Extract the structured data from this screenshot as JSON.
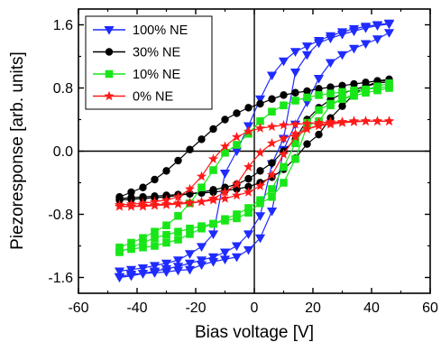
{
  "chart_data": {
    "type": "line",
    "xlabel": "Bias voltage [V]",
    "ylabel": "Piezoresponse [arb. units]",
    "xlim": [
      -60,
      60
    ],
    "ylim": [
      -1.8,
      1.8
    ],
    "x_ticks": [
      -60,
      -40,
      -20,
      0,
      20,
      40,
      60
    ],
    "x_tick_labels": [
      "-60",
      "-40",
      "-20",
      "0",
      "20",
      "40",
      "60"
    ],
    "y_ticks": [
      -1.6,
      -0.8,
      0.0,
      0.8,
      1.6
    ],
    "y_tick_labels": [
      "-1.6",
      "-0.8",
      "0.0",
      "0.8",
      "1.6"
    ],
    "reference_lines": {
      "x": 0,
      "y": 0
    },
    "legend_placement": "top-left",
    "series": [
      {
        "name": "100% NE",
        "legend_label": "100% NE",
        "color": "#1f2bff",
        "marker": "triangle-down",
        "branches": [
          {
            "x": [
              -46,
              -42,
              -38,
              -34,
              -30,
              -26,
              -22,
              -18,
              -14,
              -10,
              -6,
              -2,
              2,
              6,
              10,
              14,
              18,
              22,
              26,
              30,
              34,
              38,
              42,
              46
            ],
            "y": [
              -1.52,
              -1.5,
              -1.48,
              -1.45,
              -1.42,
              -1.38,
              -1.3,
              -1.21,
              -1.05,
              -0.28,
              0.0,
              0.32,
              0.66,
              0.96,
              1.14,
              1.26,
              1.33,
              1.4,
              1.46,
              1.51,
              1.55,
              1.58,
              1.6,
              1.62
            ]
          },
          {
            "x": [
              46,
              42,
              38,
              34,
              30,
              26,
              22,
              18,
              14,
              10,
              6,
              2,
              -2,
              -6,
              -10,
              -14,
              -18,
              -22,
              -26,
              -30,
              -34,
              -38,
              -42,
              -46
            ],
            "y": [
              1.61,
              1.59,
              1.56,
              1.52,
              1.48,
              1.43,
              1.37,
              1.22,
              1.0,
              0.16,
              -0.16,
              -0.82,
              -1.05,
              -1.2,
              -1.28,
              -1.34,
              -1.38,
              -1.42,
              -1.46,
              -1.49,
              -1.52,
              -1.55,
              -1.58,
              -1.6
            ]
          },
          {
            "x": [
              -46,
              -42,
              -38,
              -34,
              -30,
              -26,
              -22,
              -18,
              -14,
              -10,
              -6,
              -2,
              2,
              6,
              10,
              14,
              18,
              22,
              26,
              30,
              34,
              38,
              42,
              46
            ],
            "y": [
              -1.59,
              -1.56,
              -1.55,
              -1.54,
              -1.53,
              -1.51,
              -1.5,
              -1.44,
              -1.4,
              -1.37,
              -1.34,
              -1.25,
              -1.1,
              -0.76,
              0.02,
              0.34,
              0.62,
              0.92,
              1.12,
              1.22,
              1.3,
              1.36,
              1.42,
              1.5
            ]
          }
        ]
      },
      {
        "name": "30% NE",
        "legend_label": "30% NE",
        "color": "#000000",
        "marker": "circle",
        "branches": [
          {
            "x": [
              -46,
              -42,
              -38,
              -34,
              -30,
              -26,
              -22,
              -18,
              -14,
              -10,
              -6,
              -2,
              2,
              6,
              10,
              14,
              18,
              22,
              26,
              30,
              34,
              38,
              42,
              46
            ],
            "y": [
              -0.58,
              -0.52,
              -0.46,
              -0.36,
              -0.25,
              -0.12,
              0.02,
              0.15,
              0.28,
              0.4,
              0.48,
              0.55,
              0.6,
              0.66,
              0.71,
              0.74,
              0.76,
              0.79,
              0.81,
              0.83,
              0.85,
              0.87,
              0.89,
              0.91
            ]
          },
          {
            "x": [
              46,
              42,
              38,
              34,
              30,
              26,
              22,
              18,
              14,
              10,
              6,
              2,
              -2,
              -6,
              -10,
              -14,
              -18,
              -22,
              -26,
              -30,
              -34,
              -38,
              -42,
              -46
            ],
            "y": [
              0.9,
              0.88,
              0.82,
              0.72,
              0.57,
              0.42,
              0.21,
              0.09,
              -0.09,
              -0.23,
              -0.33,
              -0.4,
              -0.45,
              -0.48,
              -0.5,
              -0.52,
              -0.53,
              -0.54,
              -0.55,
              -0.56,
              -0.57,
              -0.58,
              -0.59,
              -0.6
            ]
          },
          {
            "x": [
              -46,
              -42,
              -38,
              -34,
              -30,
              -26,
              -22,
              -18,
              -14,
              -10,
              -6,
              -2,
              2,
              6,
              10,
              14,
              18,
              22,
              26,
              30,
              34,
              38,
              42,
              46
            ],
            "y": [
              -0.62,
              -0.61,
              -0.6,
              -0.59,
              -0.58,
              -0.56,
              -0.54,
              -0.52,
              -0.49,
              -0.46,
              -0.42,
              -0.35,
              -0.25,
              -0.15,
              0.0,
              0.15,
              0.4,
              0.55,
              0.65,
              0.73,
              0.78,
              0.82,
              0.86,
              0.88
            ]
          }
        ]
      },
      {
        "name": "10% NE",
        "legend_label": "10% NE",
        "color": "#19e619",
        "marker": "square",
        "branches": [
          {
            "x": [
              -46,
              -42,
              -38,
              -34,
              -30,
              -26,
              -22,
              -18,
              -14,
              -10,
              -6,
              -2,
              2,
              6,
              10,
              14,
              18,
              22,
              26,
              30,
              34,
              38,
              42,
              46
            ],
            "y": [
              -1.22,
              -1.16,
              -1.1,
              -1.02,
              -0.94,
              -0.82,
              -0.66,
              -0.46,
              -0.24,
              -0.02,
              0.08,
              0.22,
              0.38,
              0.5,
              0.58,
              0.64,
              0.68,
              0.71,
              0.73,
              0.75,
              0.77,
              0.78,
              0.8,
              0.82
            ]
          },
          {
            "x": [
              46,
              42,
              38,
              34,
              30,
              26,
              22,
              18,
              14,
              10,
              6,
              2,
              -2,
              -6,
              -10,
              -14,
              -18,
              -22,
              -26,
              -30,
              -34,
              -38,
              -42,
              -46
            ],
            "y": [
              0.8,
              0.77,
              0.74,
              0.7,
              0.66,
              0.58,
              0.38,
              0.32,
              -0.1,
              -0.4,
              -0.58,
              -0.66,
              -0.78,
              -0.85,
              -0.88,
              -0.92,
              -0.95,
              -0.98,
              -1.02,
              -1.06,
              -1.1,
              -1.16,
              -1.22,
              -1.28
            ]
          },
          {
            "x": [
              -46,
              -42,
              -38,
              -34,
              -30,
              -26,
              -22,
              -18,
              -14,
              -10,
              -6,
              -2,
              2,
              6,
              10,
              14,
              18,
              22,
              26,
              30,
              34,
              38,
              42,
              46
            ],
            "y": [
              -1.26,
              -1.24,
              -1.22,
              -1.2,
              -1.16,
              -1.12,
              -1.05,
              -0.98,
              -0.92,
              -0.86,
              -0.8,
              -0.72,
              -0.62,
              -0.48,
              -0.2,
              0.1,
              0.36,
              0.52,
              0.6,
              0.66,
              0.72,
              0.78,
              0.82,
              0.86
            ]
          }
        ]
      },
      {
        "name": "0% NE",
        "legend_label": "0% NE",
        "color": "#ff1a1a",
        "marker": "star",
        "branches": [
          {
            "x": [
              -46,
              -42,
              -38,
              -34,
              -30,
              -26,
              -22,
              -18,
              -14,
              -10,
              -6,
              -2,
              2,
              6,
              10,
              14,
              18,
              22,
              26,
              30,
              34,
              38,
              42,
              46
            ],
            "y": [
              -0.68,
              -0.67,
              -0.66,
              -0.64,
              -0.62,
              -0.58,
              -0.48,
              -0.32,
              -0.1,
              0.06,
              0.18,
              0.25,
              0.29,
              0.31,
              0.33,
              0.34,
              0.35,
              0.36,
              0.37,
              0.37,
              0.38,
              0.38,
              0.38,
              0.38
            ]
          },
          {
            "x": [
              46,
              42,
              38,
              34,
              30,
              26,
              22,
              18,
              14,
              10,
              6,
              2,
              -2,
              -6,
              -10,
              -14,
              -18,
              -22,
              -26,
              -30,
              -34,
              -38,
              -42,
              -46
            ],
            "y": [
              0.38,
              0.38,
              0.38,
              0.38,
              0.37,
              0.36,
              0.33,
              0.28,
              0.18,
              -0.04,
              -0.3,
              -0.44,
              -0.52,
              -0.56,
              -0.6,
              -0.62,
              -0.64,
              -0.65,
              -0.66,
              -0.67,
              -0.68,
              -0.69,
              -0.7,
              -0.7
            ]
          },
          {
            "x": [
              -46,
              -42,
              -38,
              -34,
              -30,
              -26,
              -22,
              -18,
              -14,
              -10,
              -6,
              -2,
              2,
              6,
              10,
              14,
              18,
              22,
              26,
              30,
              34,
              38,
              42,
              46
            ],
            "y": [
              -0.7,
              -0.7,
              -0.7,
              -0.69,
              -0.68,
              -0.67,
              -0.66,
              -0.64,
              -0.6,
              -0.52,
              -0.42,
              -0.2,
              -0.02,
              0.1,
              0.16,
              0.22,
              0.28,
              0.32,
              0.34,
              0.36,
              0.37,
              0.38,
              0.38,
              0.38
            ]
          }
        ]
      }
    ]
  }
}
